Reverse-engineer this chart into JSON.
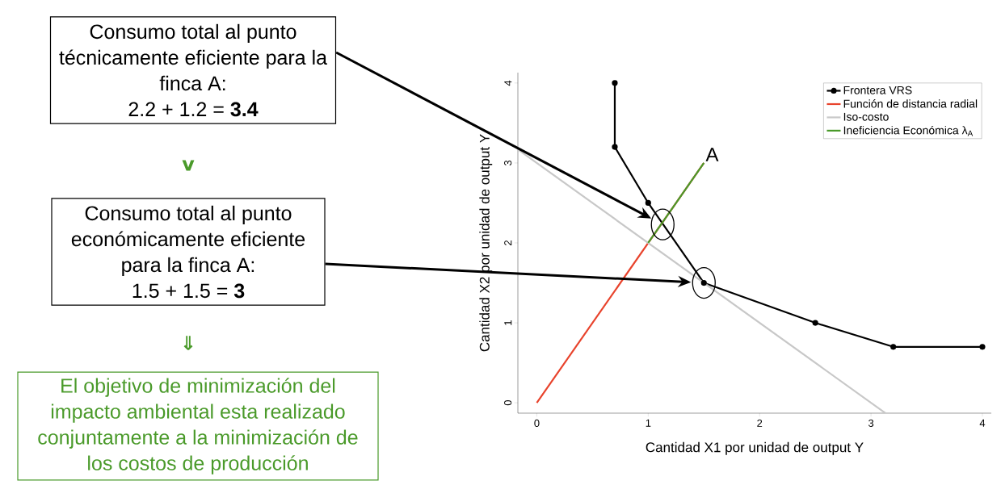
{
  "chart_data": {
    "type": "line",
    "xlabel": "Cantidad X1 por unidad de output Y",
    "ylabel": "Cantidad X2 por unidad de output Y",
    "series": [
      {
        "name": "Frontera VRS",
        "color": "#000000",
        "marker": "circle",
        "x": [
          0.7,
          0.7,
          1,
          1.5,
          2.5,
          3.2,
          4
        ],
        "values": [
          4,
          3.2,
          2.5,
          1.5,
          1,
          0.7,
          0.7
        ]
      },
      {
        "name": "Función de distancia radial",
        "color": "#e8432c",
        "x": [
          0,
          1.5
        ],
        "values": [
          0,
          3
        ]
      },
      {
        "name": "Iso-costo",
        "color": "#c8c8c8",
        "x": [
          -0.17,
          3.13
        ],
        "values": [
          3.17,
          -0.13
        ]
      },
      {
        "name": "Ineficiencia Económica λ$_{A}$",
        "color": "#4a9a2a",
        "x": [
          1,
          1.5
        ],
        "values": [
          2,
          3
        ]
      }
    ],
    "xlim": [
      -0.17,
      4.08
    ],
    "ylim": [
      -0.13,
      4.13
    ],
    "xticks": [
      0,
      1,
      2,
      3,
      4
    ],
    "yticks": [
      0,
      1,
      2,
      3,
      4
    ],
    "legend": "top right",
    "annotations": [
      {
        "text": "A",
        "x": 1.5,
        "y": 3
      },
      "Consumo total al punto técnicamente eficiente para la finca A:",
      "2.2 + 1.2 = **3.4**",
      "v",
      "Consumo total al punto económicamente eficiente para la finca A:",
      "1.5 + 1.5 = **3**",
      "⇓",
      "El objetivo de minimización del impacto ambiental esta realizado conjuntamente a la minimización de los costos de producción"
    ]
  }
}
